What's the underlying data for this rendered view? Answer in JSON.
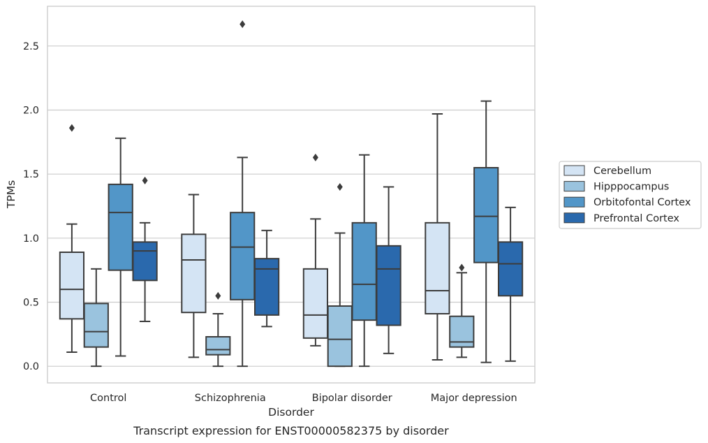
{
  "caption": "Transcript expression for ENST00000582375 by disorder",
  "chart_data": {
    "type": "box",
    "title": "",
    "xlabel": "Disorder",
    "ylabel": "TPMs",
    "ylim": [
      -0.13,
      2.81
    ],
    "yticks": [
      0.0,
      0.5,
      1.0,
      1.5,
      2.0,
      2.5
    ],
    "ytick_labels": [
      "0.0",
      "0.5",
      "1.0",
      "1.5",
      "2.0",
      "2.5"
    ],
    "grid": "horizontal",
    "legend_position": "right",
    "categories": [
      "Control",
      "Schizophrenia",
      "Bipolar disorder",
      "Major depression"
    ],
    "series": [
      {
        "name": "Cerebellum",
        "color": "#d4e4f4",
        "boxes": [
          {
            "whisker_low": 0.11,
            "q1": 0.37,
            "median": 0.6,
            "q3": 0.89,
            "whisker_high": 1.11,
            "outliers": [
              1.86
            ]
          },
          {
            "whisker_low": 0.07,
            "q1": 0.42,
            "median": 0.83,
            "q3": 1.03,
            "whisker_high": 1.34,
            "outliers": []
          },
          {
            "whisker_low": 0.16,
            "q1": 0.22,
            "median": 0.4,
            "q3": 0.76,
            "whisker_high": 1.15,
            "outliers": [
              1.63
            ]
          },
          {
            "whisker_low": 0.05,
            "q1": 0.41,
            "median": 0.59,
            "q3": 1.12,
            "whisker_high": 1.97,
            "outliers": []
          }
        ]
      },
      {
        "name": "Hipppocampus",
        "color": "#9ac3de",
        "boxes": [
          {
            "whisker_low": 0.0,
            "q1": 0.15,
            "median": 0.27,
            "q3": 0.49,
            "whisker_high": 0.76,
            "outliers": []
          },
          {
            "whisker_low": 0.0,
            "q1": 0.09,
            "median": 0.13,
            "q3": 0.23,
            "whisker_high": 0.41,
            "outliers": [
              0.55
            ]
          },
          {
            "whisker_low": 0.0,
            "q1": 0.0,
            "median": 0.21,
            "q3": 0.47,
            "whisker_high": 1.04,
            "outliers": [
              1.4
            ]
          },
          {
            "whisker_low": 0.07,
            "q1": 0.15,
            "median": 0.19,
            "q3": 0.39,
            "whisker_high": 0.73,
            "outliers": [
              0.77
            ]
          }
        ]
      },
      {
        "name": "Orbitofontal Cortex",
        "color": "#5296c8",
        "boxes": [
          {
            "whisker_low": 0.08,
            "q1": 0.75,
            "median": 1.2,
            "q3": 1.42,
            "whisker_high": 1.78,
            "outliers": []
          },
          {
            "whisker_low": 0.0,
            "q1": 0.52,
            "median": 0.93,
            "q3": 1.2,
            "whisker_high": 1.63,
            "outliers": [
              2.67
            ]
          },
          {
            "whisker_low": 0.0,
            "q1": 0.36,
            "median": 0.64,
            "q3": 1.12,
            "whisker_high": 1.65,
            "outliers": []
          },
          {
            "whisker_low": 0.03,
            "q1": 0.81,
            "median": 1.17,
            "q3": 1.55,
            "whisker_high": 2.07,
            "outliers": []
          }
        ]
      },
      {
        "name": "Prefrontal Cortex",
        "color": "#2a69ad",
        "boxes": [
          {
            "whisker_low": 0.35,
            "q1": 0.67,
            "median": 0.9,
            "q3": 0.97,
            "whisker_high": 1.12,
            "outliers": [
              1.45
            ]
          },
          {
            "whisker_low": 0.31,
            "q1": 0.4,
            "median": 0.76,
            "q3": 0.84,
            "whisker_high": 1.06,
            "outliers": []
          },
          {
            "whisker_low": 0.1,
            "q1": 0.32,
            "median": 0.76,
            "q3": 0.94,
            "whisker_high": 1.4,
            "outliers": []
          },
          {
            "whisker_low": 0.04,
            "q1": 0.55,
            "median": 0.8,
            "q3": 0.97,
            "whisker_high": 1.24,
            "outliers": []
          }
        ]
      }
    ]
  }
}
